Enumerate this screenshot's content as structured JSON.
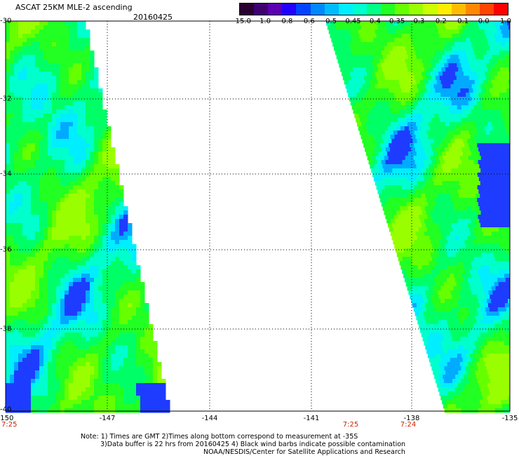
{
  "title": "ASCAT 25KM MLE-2 ascending",
  "date": "20160425",
  "colorbar": {
    "colors": [
      "#2a0030",
      "#3f0070",
      "#5a00b0",
      "#2200ff",
      "#0044ff",
      "#0088ff",
      "#00bbff",
      "#00eeff",
      "#00ffcc",
      "#00ff88",
      "#22ff22",
      "#66ff00",
      "#99ff00",
      "#ccff00",
      "#ffee00",
      "#ffbb00",
      "#ff8800",
      "#ff4400",
      "#ff0000"
    ],
    "labels": [
      "-15.0",
      "-1.0",
      "-0.8",
      "-0.6",
      "-0.5",
      "-0.45",
      "-0.4",
      "-0.35",
      "-0.3",
      "-0.2",
      "-0.1",
      "0.0",
      "1.0"
    ]
  },
  "latitudes": [
    "-30",
    "-32",
    "-34",
    "-36",
    "-38",
    "-40"
  ],
  "longitudes": [
    "-150",
    "-147",
    "-144",
    "-141",
    "-138",
    "-135"
  ],
  "times": [
    "7:25",
    "7:25",
    "7:24"
  ],
  "notes": [
    "Note: 1) Times are GMT 2)Times along bottom correspond to measurement at -35S",
    "3)Data buffer is 22 hrs from 20160425 4) Black wind barbs indicate possible contamination",
    "NOAA/NESDIS/Center for Satellite Applications and Research"
  ]
}
